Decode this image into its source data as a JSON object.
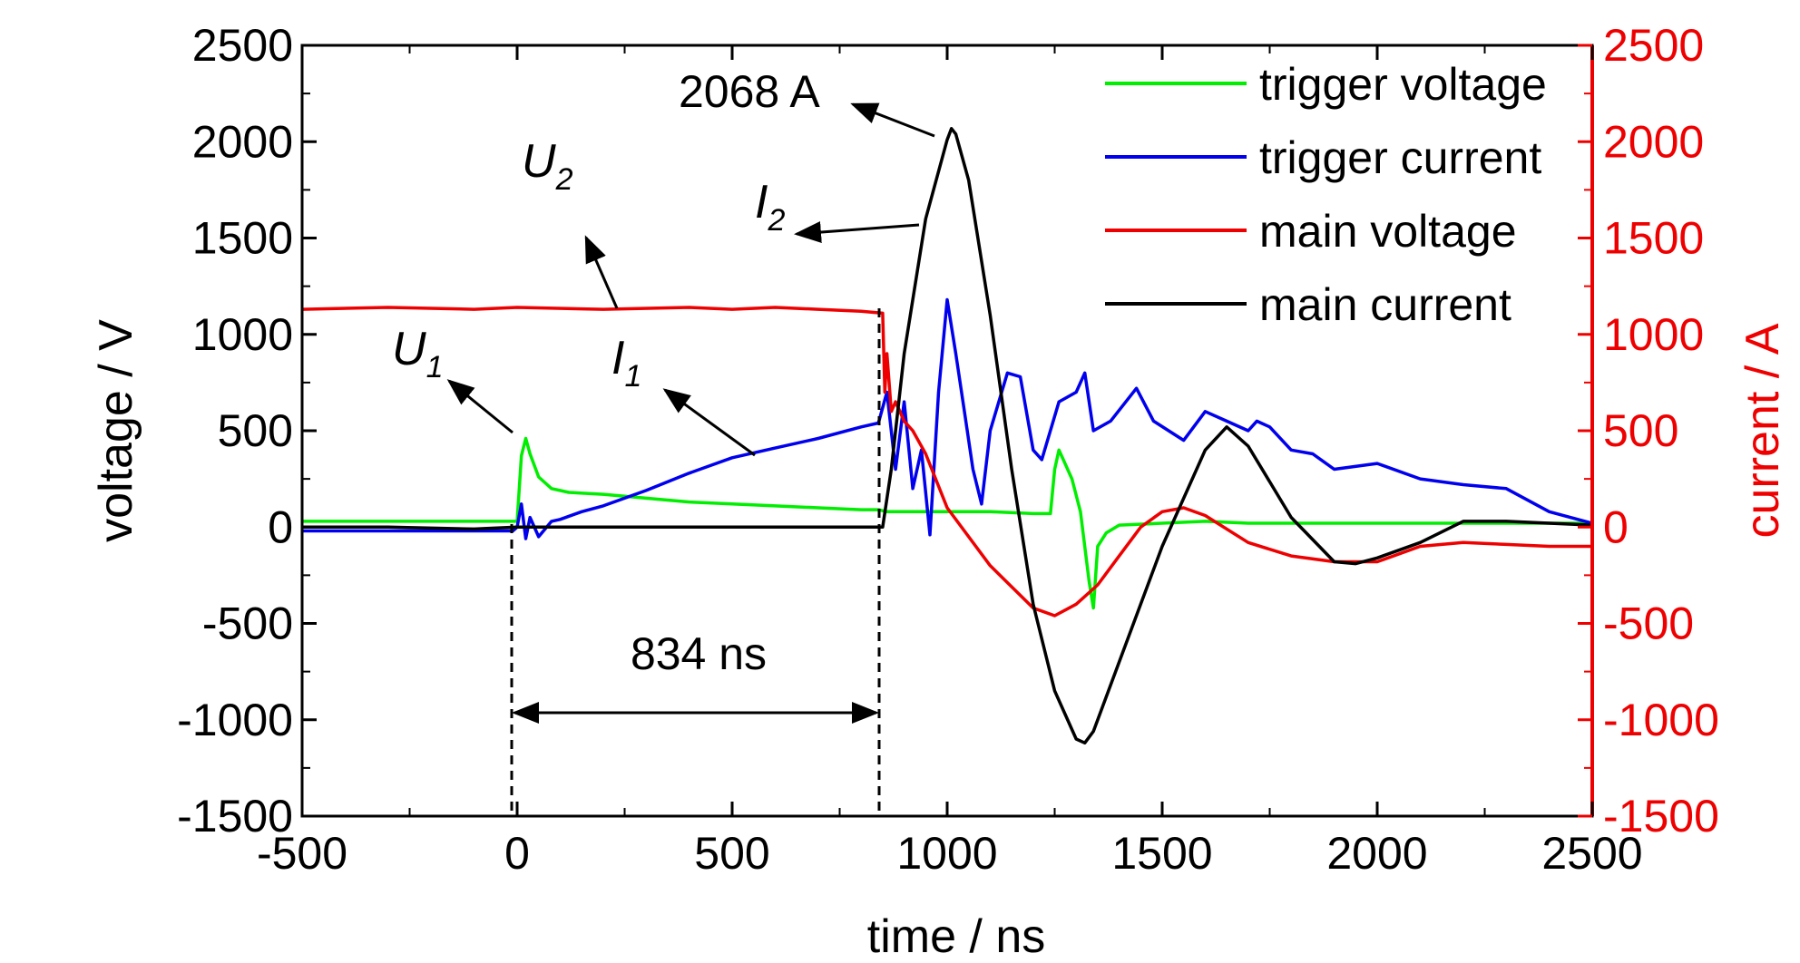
{
  "chart_data": {
    "type": "line",
    "xlabel": "time / ns",
    "ylabel_left": "voltage / V",
    "ylabel_right": "current / A",
    "xlim": [
      -500,
      2500
    ],
    "ylim": [
      -1500,
      2500
    ],
    "x_ticks": [
      "-500",
      "0",
      "500",
      "1000",
      "1500",
      "2000",
      "2500"
    ],
    "y_ticks": [
      "-1500",
      "-1000",
      "-500",
      "0",
      "500",
      "1000",
      "1500",
      "2000",
      "2500"
    ],
    "right_ticks": [
      "-1500",
      "-1000",
      "-500",
      "0",
      "500",
      "1000",
      "1500",
      "2000",
      "2500"
    ],
    "colors": {
      "trigger_voltage": "#00ee00",
      "trigger_current": "#0000ee",
      "main_voltage": "#ee0000",
      "main_current": "#000000",
      "right_axis": "#ee0000"
    },
    "legend_position": "top-right",
    "series": [
      {
        "name": "trigger voltage",
        "key": "trigger_voltage",
        "x": [
          -500,
          -200,
          -10,
          0,
          10,
          20,
          30,
          50,
          80,
          120,
          200,
          300,
          400,
          500,
          600,
          700,
          800,
          840,
          860,
          900,
          1000,
          1100,
          1200,
          1240,
          1250,
          1260,
          1270,
          1290,
          1310,
          1330,
          1340,
          1350,
          1370,
          1400,
          1500,
          1600,
          1700,
          1800,
          1900,
          2000,
          2100,
          2200,
          2300,
          2400,
          2500
        ],
        "y": [
          30,
          30,
          30,
          30,
          370,
          460,
          380,
          260,
          200,
          180,
          170,
          150,
          130,
          120,
          110,
          100,
          90,
          90,
          80,
          80,
          80,
          80,
          70,
          70,
          300,
          400,
          350,
          250,
          80,
          -280,
          -420,
          -100,
          -30,
          10,
          20,
          30,
          20,
          20,
          20,
          20,
          20,
          20,
          20,
          20,
          20
        ]
      },
      {
        "name": "trigger current",
        "key": "trigger_current",
        "x": [
          -500,
          -200,
          -10,
          0,
          10,
          20,
          30,
          50,
          80,
          100,
          150,
          200,
          300,
          400,
          500,
          600,
          700,
          800,
          840,
          860,
          880,
          900,
          920,
          940,
          960,
          980,
          1000,
          1020,
          1040,
          1060,
          1080,
          1100,
          1140,
          1170,
          1200,
          1220,
          1260,
          1300,
          1320,
          1340,
          1380,
          1440,
          1480,
          1550,
          1600,
          1650,
          1700,
          1720,
          1750,
          1800,
          1850,
          1900,
          2000,
          2100,
          2200,
          2300,
          2400,
          2500
        ],
        "y": [
          -20,
          -20,
          -20,
          0,
          120,
          -60,
          50,
          -50,
          30,
          40,
          80,
          110,
          190,
          280,
          360,
          410,
          460,
          520,
          540,
          700,
          300,
          650,
          200,
          400,
          -40,
          700,
          1180,
          900,
          600,
          300,
          120,
          500,
          800,
          780,
          400,
          350,
          650,
          700,
          800,
          500,
          550,
          720,
          550,
          450,
          600,
          550,
          500,
          550,
          520,
          400,
          380,
          300,
          330,
          250,
          220,
          200,
          80,
          20
        ]
      },
      {
        "name": "main voltage",
        "key": "main_voltage",
        "x": [
          -500,
          -300,
          -100,
          0,
          200,
          400,
          500,
          600,
          700,
          800,
          850,
          855,
          860,
          870,
          880,
          900,
          920,
          950,
          1000,
          1100,
          1200,
          1250,
          1300,
          1350,
          1400,
          1450,
          1500,
          1550,
          1600,
          1700,
          1800,
          1900,
          2000,
          2100,
          2200,
          2300,
          2400,
          2500
        ],
        "y": [
          1130,
          1140,
          1130,
          1140,
          1130,
          1140,
          1130,
          1140,
          1130,
          1120,
          1110,
          700,
          900,
          600,
          650,
          550,
          500,
          380,
          100,
          -200,
          -420,
          -460,
          -400,
          -300,
          -150,
          0,
          80,
          100,
          60,
          -80,
          -150,
          -180,
          -180,
          -100,
          -80,
          -90,
          -100,
          -100
        ]
      },
      {
        "name": "main current",
        "key": "main_current",
        "x": [
          -500,
          -300,
          -100,
          0,
          200,
          400,
          600,
          800,
          840,
          850,
          870,
          900,
          950,
          1000,
          1010,
          1020,
          1050,
          1100,
          1150,
          1200,
          1250,
          1300,
          1320,
          1340,
          1400,
          1500,
          1600,
          1650,
          1700,
          1800,
          1900,
          1950,
          2000,
          2100,
          2200,
          2300,
          2400,
          2500
        ],
        "y": [
          0,
          0,
          -10,
          0,
          0,
          0,
          0,
          0,
          0,
          0,
          300,
          900,
          1600,
          2010,
          2068,
          2040,
          1800,
          1100,
          300,
          -400,
          -850,
          -1100,
          -1120,
          -1060,
          -700,
          -100,
          400,
          520,
          420,
          50,
          -180,
          -190,
          -160,
          -80,
          30,
          30,
          20,
          10
        ]
      }
    ],
    "annotations": {
      "peak": "2068 A",
      "duration": "834 ns",
      "U1": {
        "letter": "U",
        "sub": "1"
      },
      "U2": {
        "letter": "U",
        "sub": "2"
      },
      "I1": {
        "letter": "I",
        "sub": "1"
      },
      "I2": {
        "letter": "I",
        "sub": "2"
      }
    }
  }
}
